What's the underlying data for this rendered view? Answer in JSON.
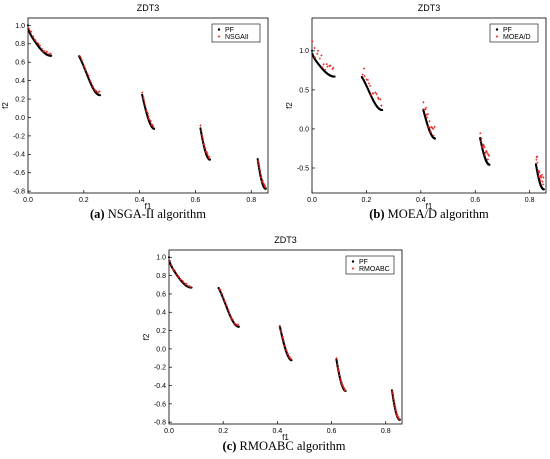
{
  "colors": {
    "pf": "#000000",
    "approx": "#e8201c"
  },
  "chart_data": [
    {
      "type": "scatter",
      "title": "ZDT3",
      "xlabel": "f1",
      "ylabel": "f2",
      "xlim": [
        0.0,
        0.86
      ],
      "ylim": [
        -0.82,
        1.08
      ],
      "xticks": [
        0.0,
        0.2,
        0.4,
        0.6,
        0.8
      ],
      "xtick_labels": [
        "0.0",
        "0.2",
        "0.4",
        "0.6",
        "0.8"
      ],
      "yticks": [
        -0.8,
        -0.6,
        -0.4,
        -0.2,
        0.0,
        0.2,
        0.4,
        0.6,
        0.8,
        1.0
      ],
      "ytick_labels": [
        "-0.8",
        "-0.6",
        "-0.4",
        "-0.2",
        "0.0",
        "0.2",
        "0.4",
        "0.6",
        "0.8",
        "1.0"
      ],
      "legend": [
        "PF",
        "NSGAII"
      ],
      "legend_position": "top-right",
      "caption_label": "(a)",
      "caption_text": " NSGA-II algorithm",
      "approx_offset": 0.03,
      "approx_spread": 0.02,
      "approx_density": 16
    },
    {
      "type": "scatter",
      "title": "ZDT3",
      "xlabel": "f1",
      "ylabel": "f2",
      "xlim": [
        0.0,
        0.86
      ],
      "ylim": [
        -0.82,
        1.42
      ],
      "xticks": [
        0.0,
        0.2,
        0.4,
        0.6,
        0.8
      ],
      "xtick_labels": [
        "0.0",
        "0.2",
        "0.4",
        "0.6",
        "0.8"
      ],
      "yticks": [
        -0.5,
        0.0,
        0.5,
        1.0
      ],
      "ytick_labels": [
        "-0.5",
        "0.0",
        "0.5",
        "1.0"
      ],
      "legend": [
        "PF",
        "MOEA/D"
      ],
      "legend_position": "top-right",
      "caption_label": "(b)",
      "caption_text": " MOEA/D algorithm",
      "approx_offset": 0.12,
      "approx_spread": 0.09,
      "approx_density": 16
    },
    {
      "type": "scatter",
      "title": "ZDT3",
      "xlabel": "f1",
      "ylabel": "f2",
      "xlim": [
        0.0,
        0.86
      ],
      "ylim": [
        -0.82,
        1.08
      ],
      "xticks": [
        0.0,
        0.2,
        0.4,
        0.6,
        0.8
      ],
      "xtick_labels": [
        "0.0",
        "0.2",
        "0.4",
        "0.6",
        "0.8"
      ],
      "yticks": [
        -0.8,
        -0.6,
        -0.4,
        -0.2,
        0.0,
        0.2,
        0.4,
        0.6,
        0.8,
        1.0
      ],
      "ytick_labels": [
        "-0.8",
        "-0.6",
        "-0.4",
        "-0.2",
        "0.0",
        "0.2",
        "0.4",
        "0.6",
        "0.8",
        "1.0"
      ],
      "legend": [
        "PF",
        "RMOABC"
      ],
      "legend_position": "top-right",
      "caption_label": "(c)",
      "caption_text": " RMOABC algorithm",
      "approx_offset": 0.015,
      "approx_spread": 0.012,
      "approx_density": 16
    }
  ],
  "pareto_front": {
    "function": "f2 = 1 - sqrt(f1) - f1*sin(10*pi*f1)",
    "segments": [
      [
        0.0,
        0.083
      ],
      [
        0.183,
        0.258
      ],
      [
        0.409,
        0.452
      ],
      [
        0.618,
        0.652
      ],
      [
        0.823,
        0.852
      ]
    ]
  }
}
